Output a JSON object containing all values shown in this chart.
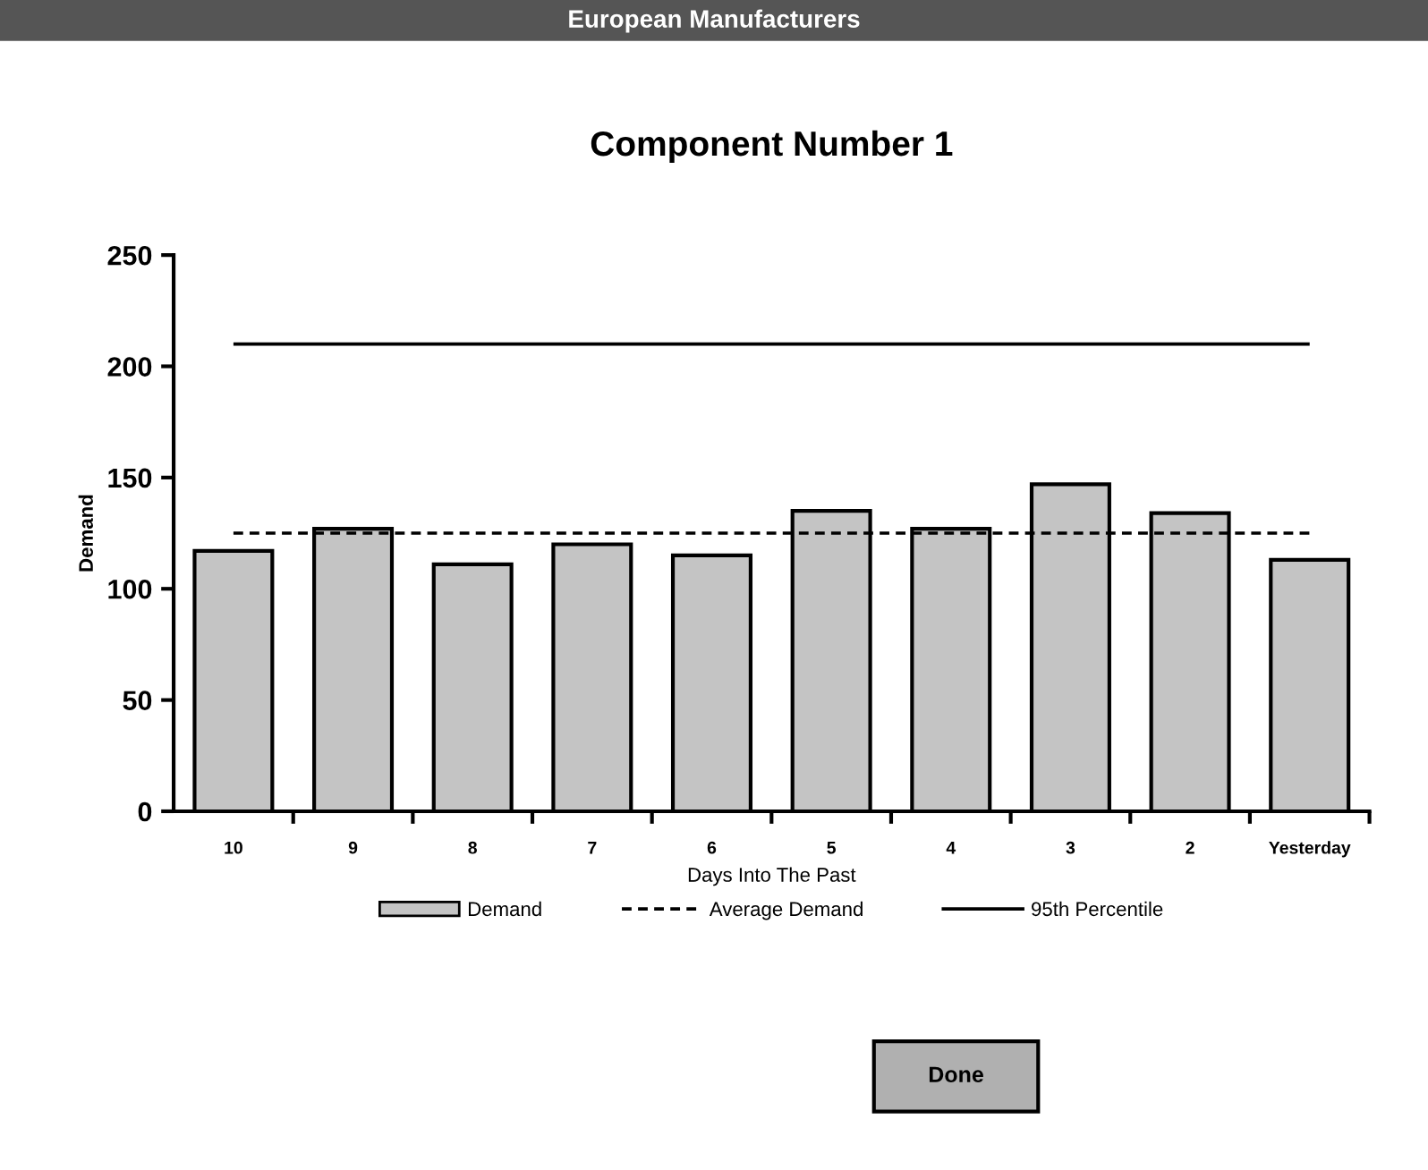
{
  "chart_data": {
    "type": "bar",
    "title": "Component Number 1",
    "xlabel": "Days Into The Past",
    "ylabel": "Demand",
    "categories": [
      "10",
      "9",
      "8",
      "7",
      "6",
      "5",
      "4",
      "3",
      "2",
      "Yesterday"
    ],
    "series": [
      {
        "name": "Demand",
        "color": "#c4c4c4",
        "values": [
          117,
          127,
          111,
          120,
          115,
          135,
          127,
          147,
          134,
          113
        ]
      }
    ],
    "ref_lines": [
      {
        "axis": "y",
        "value": 125,
        "label": "Average Demand",
        "line_style": "dashed",
        "color": "#000000"
      },
      {
        "axis": "y",
        "value": 210,
        "label": "95th Percentile",
        "line_style": "solid",
        "color": "#000000"
      }
    ],
    "ylim": [
      0,
      250
    ],
    "yticks": [
      0,
      50,
      100,
      150,
      200,
      250
    ],
    "grid": false,
    "legend": "bottom",
    "annotations": [
      "European Manufacturers",
      "Done"
    ]
  }
}
